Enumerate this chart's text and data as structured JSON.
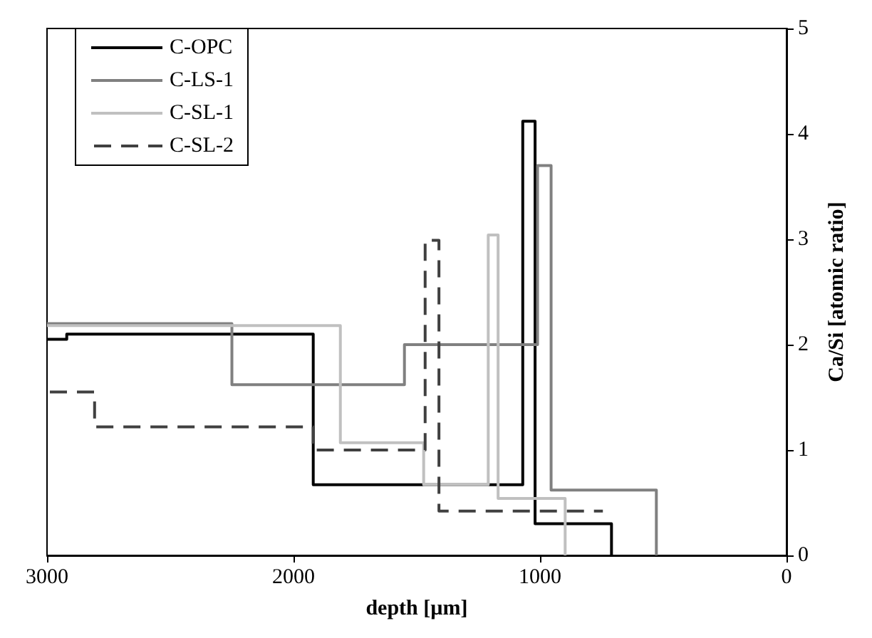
{
  "chart_data": {
    "type": "step",
    "xlabel": "depth [µm]",
    "ylabel": "Ca/Si [atomic ratio]",
    "xlim": [
      3000,
      0
    ],
    "xticks": [
      3000,
      2000,
      1000,
      0
    ],
    "ylim": [
      0,
      5
    ],
    "yticks": [
      0,
      1,
      2,
      3,
      4,
      5
    ],
    "grid": false,
    "legend": "top left",
    "marker": "none",
    "series": [
      {
        "name": "C-OPC",
        "color": "#000000",
        "x": [
          3000,
          2920,
          1920,
          1070,
          1020,
          710
        ],
        "values": [
          2.05,
          2.1,
          0.67,
          4.12,
          0.3,
          0
        ]
      },
      {
        "name": "C-LS-1",
        "color": "#808080",
        "x": [
          3000,
          2250,
          1550,
          1010,
          955,
          528
        ],
        "values": [
          2.2,
          1.62,
          2.0,
          3.7,
          0.62,
          0
        ]
      },
      {
        "name": "C-SL-1",
        "color": "#c0c0c0",
        "x": [
          3000,
          1810,
          1472,
          1210,
          1170,
          898
        ],
        "values": [
          2.18,
          1.07,
          0.67,
          3.04,
          0.54,
          0
        ]
      },
      {
        "name": "C-SL-2",
        "color": "#404040",
        "line_style": "dashed",
        "x": [
          3000,
          2807,
          1920,
          1466,
          1410,
          745
        ],
        "values": [
          1.55,
          1.22,
          1.0,
          2.99,
          0.42,
          0.42
        ]
      }
    ]
  }
}
